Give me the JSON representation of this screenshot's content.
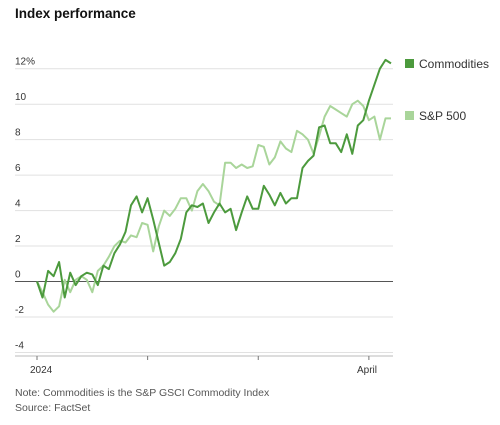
{
  "title": "Index performance",
  "notes": {
    "note": "Note: Commodities is the S&P GSCI Commodity Index",
    "source": "Source: FactSet"
  },
  "colors": {
    "commodities": "#4c9a3d",
    "sp500": "#a9d59a",
    "zero_line": "#555555",
    "grid": "#e1e1e1"
  },
  "chart_data": {
    "type": "line",
    "title": "Index performance",
    "xlabel": "",
    "ylabel": "",
    "x_tick_labels": [
      "2024",
      "April"
    ],
    "y_tick_labels": [
      "12%",
      "10",
      "8",
      "6",
      "4",
      "2",
      "0",
      "-2",
      "-4"
    ],
    "y_ticks": [
      12,
      10,
      8,
      6,
      4,
      2,
      0,
      -2,
      -4
    ],
    "ylim": [
      -4.2,
      13
    ],
    "x_ticks_trading_day": [
      0,
      20,
      40,
      60
    ],
    "xlim": [
      0,
      64
    ],
    "grid": true,
    "legend_placement": "right",
    "series": [
      {
        "name": "Commodities",
        "values": [
          0,
          -0.9,
          0.6,
          0.3,
          1.1,
          -0.9,
          0.5,
          -0.2,
          0.3,
          0.5,
          0.4,
          -0.2,
          0.9,
          0.7,
          1.6,
          2.1,
          2.8,
          4.3,
          4.8,
          3.9,
          4.7,
          3.5,
          2.2,
          0.9,
          1.1,
          1.6,
          2.4,
          3.9,
          4.3,
          4.2,
          4.4,
          3.3,
          3.9,
          4.4,
          3.9,
          4.1,
          2.9,
          3.9,
          4.8,
          4.1,
          4.1,
          5.4,
          4.9,
          4.3,
          5.0,
          4.4,
          4.7,
          4.7,
          6.4,
          6.8,
          7.1,
          8.7,
          8.8,
          7.8,
          7.8,
          7.3,
          8.3,
          7.2,
          8.8,
          9.1,
          10.2,
          11.1,
          12.0,
          12.5,
          12.3
        ]
      },
      {
        "name": "S&P 500",
        "values": [
          0,
          -0.6,
          -1.3,
          -1.7,
          -1.4,
          0.1,
          -0.6,
          0.1,
          0.3,
          0.1,
          -0.6,
          0.6,
          0.9,
          1.4,
          2.0,
          2.3,
          2.2,
          2.6,
          2.5,
          3.3,
          3.2,
          1.7,
          3.1,
          4.0,
          3.7,
          4.1,
          4.7,
          4.7,
          4.0,
          5.1,
          5.5,
          5.1,
          4.5,
          4.3,
          6.7,
          6.7,
          6.4,
          6.6,
          6.4,
          6.5,
          7.7,
          7.6,
          6.6,
          7.0,
          7.9,
          7.5,
          7.3,
          8.5,
          8.3,
          8.0,
          7.2,
          8.2,
          9.3,
          9.9,
          9.7,
          9.5,
          9.3,
          10.0,
          10.2,
          9.9,
          9.1,
          9.3,
          8.0,
          9.2,
          9.2
        ]
      }
    ]
  }
}
